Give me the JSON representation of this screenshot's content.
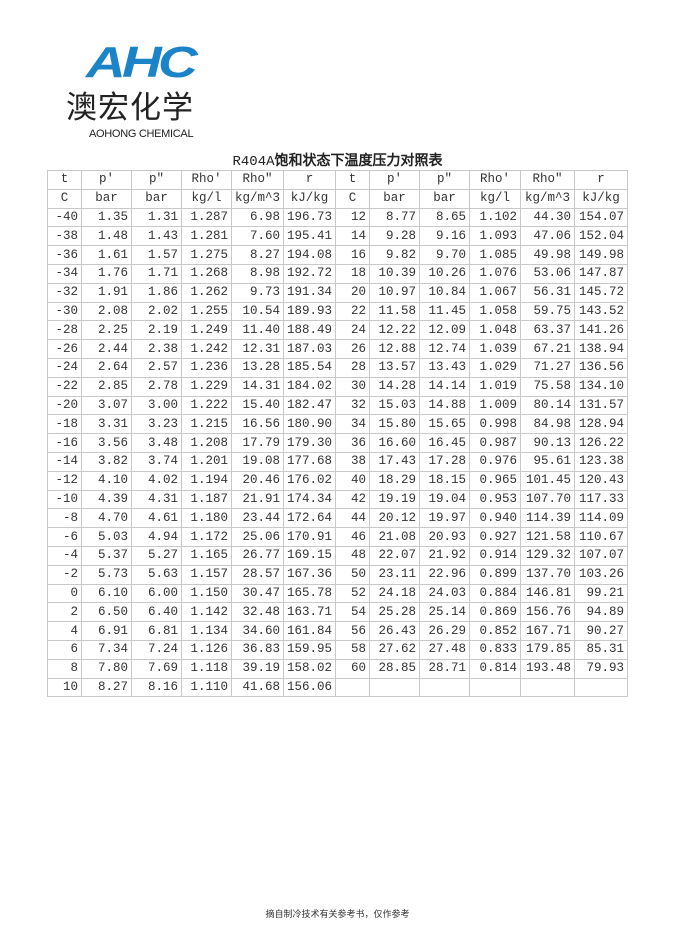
{
  "logo": {
    "mark": "AHC",
    "chinese": "澳宏化学",
    "english": "AOHONG CHEMICAL",
    "color": "#1b84c8"
  },
  "title": {
    "prefix": "R404A",
    "suffix": "饱和状态下温度压力对照表"
  },
  "table": {
    "headers": [
      "t",
      "p'",
      "p\"",
      "Rho'",
      "Rho\"",
      "r",
      "t",
      "p'",
      "p\"",
      "Rho'",
      "Rho\"",
      "r"
    ],
    "units": [
      "C",
      "bar",
      "bar",
      "kg/l",
      "kg/m^3",
      "kJ/kg",
      "C",
      "bar",
      "bar",
      "kg/l",
      "kg/m^3",
      "kJ/kg"
    ],
    "rows": [
      [
        "-40",
        "1.35",
        "1.31",
        "1.287",
        "6.98",
        "196.73",
        "12",
        "8.77",
        "8.65",
        "1.102",
        "44.30",
        "154.07"
      ],
      [
        "-38",
        "1.48",
        "1.43",
        "1.281",
        "7.60",
        "195.41",
        "14",
        "9.28",
        "9.16",
        "1.093",
        "47.06",
        "152.04"
      ],
      [
        "-36",
        "1.61",
        "1.57",
        "1.275",
        "8.27",
        "194.08",
        "16",
        "9.82",
        "9.70",
        "1.085",
        "49.98",
        "149.98"
      ],
      [
        "-34",
        "1.76",
        "1.71",
        "1.268",
        "8.98",
        "192.72",
        "18",
        "10.39",
        "10.26",
        "1.076",
        "53.06",
        "147.87"
      ],
      [
        "-32",
        "1.91",
        "1.86",
        "1.262",
        "9.73",
        "191.34",
        "20",
        "10.97",
        "10.84",
        "1.067",
        "56.31",
        "145.72"
      ],
      [
        "-30",
        "2.08",
        "2.02",
        "1.255",
        "10.54",
        "189.93",
        "22",
        "11.58",
        "11.45",
        "1.058",
        "59.75",
        "143.52"
      ],
      [
        "-28",
        "2.25",
        "2.19",
        "1.249",
        "11.40",
        "188.49",
        "24",
        "12.22",
        "12.09",
        "1.048",
        "63.37",
        "141.26"
      ],
      [
        "-26",
        "2.44",
        "2.38",
        "1.242",
        "12.31",
        "187.03",
        "26",
        "12.88",
        "12.74",
        "1.039",
        "67.21",
        "138.94"
      ],
      [
        "-24",
        "2.64",
        "2.57",
        "1.236",
        "13.28",
        "185.54",
        "28",
        "13.57",
        "13.43",
        "1.029",
        "71.27",
        "136.56"
      ],
      [
        "-22",
        "2.85",
        "2.78",
        "1.229",
        "14.31",
        "184.02",
        "30",
        "14.28",
        "14.14",
        "1.019",
        "75.58",
        "134.10"
      ],
      [
        "-20",
        "3.07",
        "3.00",
        "1.222",
        "15.40",
        "182.47",
        "32",
        "15.03",
        "14.88",
        "1.009",
        "80.14",
        "131.57"
      ],
      [
        "-18",
        "3.31",
        "3.23",
        "1.215",
        "16.56",
        "180.90",
        "34",
        "15.80",
        "15.65",
        "0.998",
        "84.98",
        "128.94"
      ],
      [
        "-16",
        "3.56",
        "3.48",
        "1.208",
        "17.79",
        "179.30",
        "36",
        "16.60",
        "16.45",
        "0.987",
        "90.13",
        "126.22"
      ],
      [
        "-14",
        "3.82",
        "3.74",
        "1.201",
        "19.08",
        "177.68",
        "38",
        "17.43",
        "17.28",
        "0.976",
        "95.61",
        "123.38"
      ],
      [
        "-12",
        "4.10",
        "4.02",
        "1.194",
        "20.46",
        "176.02",
        "40",
        "18.29",
        "18.15",
        "0.965",
        "101.45",
        "120.43"
      ],
      [
        "-10",
        "4.39",
        "4.31",
        "1.187",
        "21.91",
        "174.34",
        "42",
        "19.19",
        "19.04",
        "0.953",
        "107.70",
        "117.33"
      ],
      [
        "-8",
        "4.70",
        "4.61",
        "1.180",
        "23.44",
        "172.64",
        "44",
        "20.12",
        "19.97",
        "0.940",
        "114.39",
        "114.09"
      ],
      [
        "-6",
        "5.03",
        "4.94",
        "1.172",
        "25.06",
        "170.91",
        "46",
        "21.08",
        "20.93",
        "0.927",
        "121.58",
        "110.67"
      ],
      [
        "-4",
        "5.37",
        "5.27",
        "1.165",
        "26.77",
        "169.15",
        "48",
        "22.07",
        "21.92",
        "0.914",
        "129.32",
        "107.07"
      ],
      [
        "-2",
        "5.73",
        "5.63",
        "1.157",
        "28.57",
        "167.36",
        "50",
        "23.11",
        "22.96",
        "0.899",
        "137.70",
        "103.26"
      ],
      [
        "0",
        "6.10",
        "6.00",
        "1.150",
        "30.47",
        "165.78",
        "52",
        "24.18",
        "24.03",
        "0.884",
        "146.81",
        "99.21"
      ],
      [
        "2",
        "6.50",
        "6.40",
        "1.142",
        "32.48",
        "163.71",
        "54",
        "25.28",
        "25.14",
        "0.869",
        "156.76",
        "94.89"
      ],
      [
        "4",
        "6.91",
        "6.81",
        "1.134",
        "34.60",
        "161.84",
        "56",
        "26.43",
        "26.29",
        "0.852",
        "167.71",
        "90.27"
      ],
      [
        "6",
        "7.34",
        "7.24",
        "1.126",
        "36.83",
        "159.95",
        "58",
        "27.62",
        "27.48",
        "0.833",
        "179.85",
        "85.31"
      ],
      [
        "8",
        "7.80",
        "7.69",
        "1.118",
        "39.19",
        "158.02",
        "60",
        "28.85",
        "28.71",
        "0.814",
        "193.48",
        "79.93"
      ],
      [
        "10",
        "8.27",
        "8.16",
        "1.110",
        "41.68",
        "156.06",
        "",
        "",
        "",
        "",
        "",
        ""
      ]
    ]
  },
  "footer": "摘自制冷技术有关参考书，仅作参考"
}
